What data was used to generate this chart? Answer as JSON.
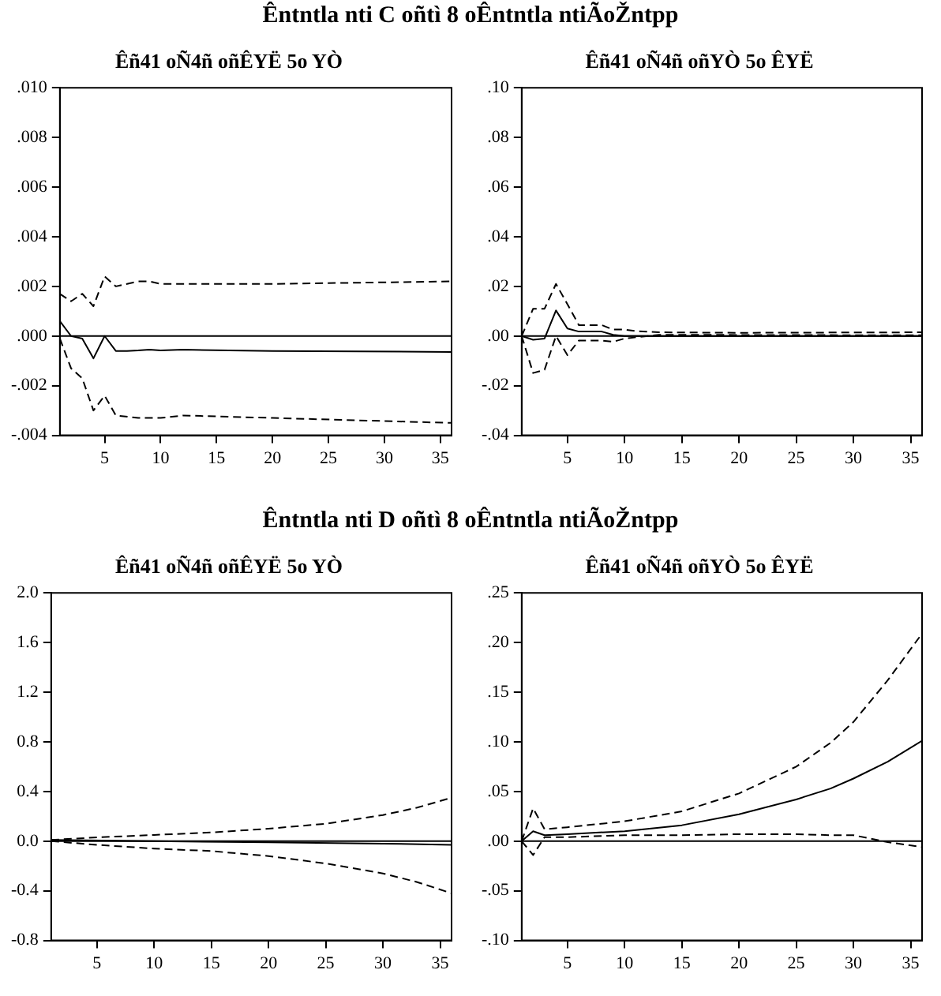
{
  "chart_data": [
    {
      "type": "line",
      "title": "Êñ41 oÑ4ñ oñÊYË 5o YÒ",
      "annotations": [
        "Êntntla nti C oñtì 8 oÊntntla ntiÃoŽntpp"
      ],
      "xlim": [
        1,
        36
      ],
      "xticks": [
        5,
        10,
        15,
        20,
        25,
        30,
        35
      ],
      "ylim": [
        -0.004,
        0.01
      ],
      "yticks": [
        {
          "value": 0.01,
          "label": ".010"
        },
        {
          "value": 0.008,
          "label": ".008"
        },
        {
          "value": 0.006,
          "label": ".006"
        },
        {
          "value": 0.004,
          "label": ".004"
        },
        {
          "value": 0.002,
          "label": ".002"
        },
        {
          "value": 0,
          "label": ".000"
        },
        {
          "value": -0.002,
          "label": "-.002"
        },
        {
          "value": -0.004,
          "label": "-.004"
        }
      ],
      "grid": false,
      "legend": false,
      "marker": "none",
      "ref_lines": [
        {
          "axis": "y",
          "value": 0,
          "color": "#000000"
        }
      ],
      "series": [
        {
          "color": "#000000",
          "line_style": "solid",
          "x": [
            1,
            2,
            3,
            4,
            5,
            6,
            7,
            8,
            9,
            10,
            12,
            20,
            36
          ],
          "values": [
            0.0006,
            0,
            -0.0001,
            -0.0009,
            0,
            -0.0006,
            -0.0006,
            -0.00058,
            -0.00055,
            -0.00058,
            -0.00055,
            -0.0006,
            -0.00064
          ]
        },
        {
          "color": "#000000",
          "line_style": "dashed",
          "x": [
            1,
            2,
            3,
            4,
            5,
            6,
            8,
            9,
            10,
            12,
            20,
            36
          ],
          "values": [
            0.0017,
            0.0014,
            0.0017,
            0.0012,
            0.0024,
            0.002,
            0.0022,
            0.0022,
            0.0021,
            0.0021,
            0.0021,
            0.0022
          ]
        },
        {
          "color": "#000000",
          "line_style": "dashed",
          "x": [
            1,
            2,
            3,
            4,
            5,
            6,
            8,
            10,
            12,
            20,
            36
          ],
          "values": [
            -0.0001,
            -0.0013,
            -0.0017,
            -0.003,
            -0.0024,
            -0.0032,
            -0.0033,
            -0.0033,
            -0.0032,
            -0.0033,
            -0.0035
          ]
        }
      ]
    },
    {
      "type": "line",
      "title": "Êñ41 oÑ4ñ oñYÒ 5o ÊYË",
      "xlim": [
        1,
        36
      ],
      "xticks": [
        5,
        10,
        15,
        20,
        25,
        30,
        35
      ],
      "ylim": [
        -0.04,
        0.1
      ],
      "yticks": [
        {
          "value": 0.1,
          "label": ".10"
        },
        {
          "value": 0.08,
          "label": ".08"
        },
        {
          "value": 0.06,
          "label": ".06"
        },
        {
          "value": 0.04,
          "label": ".04"
        },
        {
          "value": 0.02,
          "label": ".02"
        },
        {
          "value": 0,
          "label": ".00"
        },
        {
          "value": -0.02,
          "label": "-.02"
        },
        {
          "value": -0.04,
          "label": "-.04"
        }
      ],
      "grid": false,
      "legend": false,
      "marker": "none",
      "ref_lines": [
        {
          "axis": "y",
          "value": 0,
          "color": "#000000"
        }
      ],
      "series": [
        {
          "color": "#000000",
          "line_style": "solid",
          "x": [
            1,
            2,
            3,
            4,
            5,
            6,
            7,
            8,
            9,
            10,
            36
          ],
          "values": [
            0,
            -0.0015,
            -0.001,
            0.0103,
            0.003,
            0.0018,
            0.0018,
            0.0018,
            0.0005,
            0,
            0
          ]
        },
        {
          "color": "#000000",
          "line_style": "dashed",
          "x": [
            1,
            2,
            3,
            4,
            5,
            6,
            7,
            8,
            9,
            10,
            11,
            13,
            20,
            36
          ],
          "values": [
            0,
            0.011,
            0.011,
            0.021,
            0.0128,
            0.0044,
            0.0044,
            0.0044,
            0.0026,
            0.0026,
            0.002,
            0.0015,
            0.0013,
            0.0015
          ]
        },
        {
          "color": "#000000",
          "line_style": "dashed",
          "x": [
            1,
            2,
            3,
            4,
            5,
            6,
            7,
            8,
            9,
            10,
            11,
            13,
            36
          ],
          "values": [
            0,
            -0.0149,
            -0.0136,
            0,
            -0.0077,
            -0.0018,
            -0.0018,
            -0.0018,
            -0.0023,
            -0.001,
            -0.0005,
            0.0005,
            0.0003
          ]
        }
      ]
    },
    {
      "type": "line",
      "title": "Êñ41 oÑ4ñ oñÊYË 5o YÒ",
      "annotations": [
        "Êntntla nti D oñtì 8 oÊntntla ntiÃoŽntpp"
      ],
      "xlim": [
        1,
        36
      ],
      "xticks": [
        5,
        10,
        15,
        20,
        25,
        30,
        35
      ],
      "ylim": [
        -0.8,
        2.0
      ],
      "yticks": [
        {
          "value": 2.0,
          "label": "2.0"
        },
        {
          "value": 1.6,
          "label": "1.6"
        },
        {
          "value": 1.2,
          "label": "1.2"
        },
        {
          "value": 0.8,
          "label": "0.8"
        },
        {
          "value": 0.4,
          "label": "0.4"
        },
        {
          "value": 0,
          "label": "0.0"
        },
        {
          "value": -0.4,
          "label": "-0.4"
        },
        {
          "value": -0.8,
          "label": "-0.8"
        }
      ],
      "grid": false,
      "legend": false,
      "marker": "none",
      "ref_lines": [
        {
          "axis": "y",
          "value": 0,
          "color": "#000000"
        }
      ],
      "series": [
        {
          "color": "#000000",
          "line_style": "solid",
          "x": [
            1,
            10,
            20,
            30,
            36
          ],
          "values": [
            0.01,
            0,
            -0.01,
            -0.02,
            -0.03
          ]
        },
        {
          "color": "#000000",
          "line_style": "dashed",
          "x": [
            1,
            5,
            10,
            15,
            20,
            25,
            30,
            33,
            36
          ],
          "values": [
            0.01,
            0.03,
            0.05,
            0.07,
            0.1,
            0.14,
            0.21,
            0.27,
            0.35
          ]
        },
        {
          "color": "#000000",
          "line_style": "dashed",
          "x": [
            1,
            5,
            10,
            15,
            20,
            25,
            30,
            33,
            36
          ],
          "values": [
            0,
            -0.03,
            -0.06,
            -0.08,
            -0.12,
            -0.18,
            -0.26,
            -0.33,
            -0.42
          ]
        }
      ]
    },
    {
      "type": "line",
      "title": "Êñ41 oÑ4ñ oñYÒ 5o ÊYË",
      "xlim": [
        1,
        36
      ],
      "xticks": [
        5,
        10,
        15,
        20,
        25,
        30,
        35
      ],
      "ylim": [
        -0.1,
        0.25
      ],
      "yticks": [
        {
          "value": 0.25,
          "label": ".25"
        },
        {
          "value": 0.2,
          "label": ".20"
        },
        {
          "value": 0.15,
          "label": ".15"
        },
        {
          "value": 0.1,
          "label": ".10"
        },
        {
          "value": 0.05,
          "label": ".05"
        },
        {
          "value": 0,
          "label": ".00"
        },
        {
          "value": -0.05,
          "label": "-.05"
        },
        {
          "value": -0.1,
          "label": "-.10"
        }
      ],
      "grid": false,
      "legend": false,
      "marker": "none",
      "ref_lines": [
        {
          "axis": "y",
          "value": 0,
          "color": "#000000"
        }
      ],
      "series": [
        {
          "color": "#000000",
          "line_style": "solid",
          "x": [
            1,
            2,
            3,
            5,
            10,
            15,
            20,
            25,
            28,
            30,
            33,
            36
          ],
          "values": [
            0,
            0.01,
            0.006,
            0.007,
            0.01,
            0.016,
            0.027,
            0.042,
            0.053,
            0.063,
            0.08,
            0.101
          ]
        },
        {
          "color": "#000000",
          "line_style": "dashed",
          "x": [
            1,
            2,
            3,
            5,
            10,
            15,
            20,
            25,
            28,
            30,
            33,
            36
          ],
          "values": [
            0,
            0.033,
            0.012,
            0.014,
            0.02,
            0.03,
            0.048,
            0.075,
            0.099,
            0.12,
            0.162,
            0.209
          ]
        },
        {
          "color": "#000000",
          "line_style": "dashed",
          "x": [
            1,
            2,
            3,
            5,
            10,
            15,
            20,
            25,
            28,
            30,
            33,
            36
          ],
          "values": [
            0,
            -0.014,
            0.004,
            0.004,
            0.006,
            0.006,
            0.007,
            0.007,
            0.006,
            0.006,
            -0.001,
            -0.006
          ]
        }
      ]
    }
  ]
}
